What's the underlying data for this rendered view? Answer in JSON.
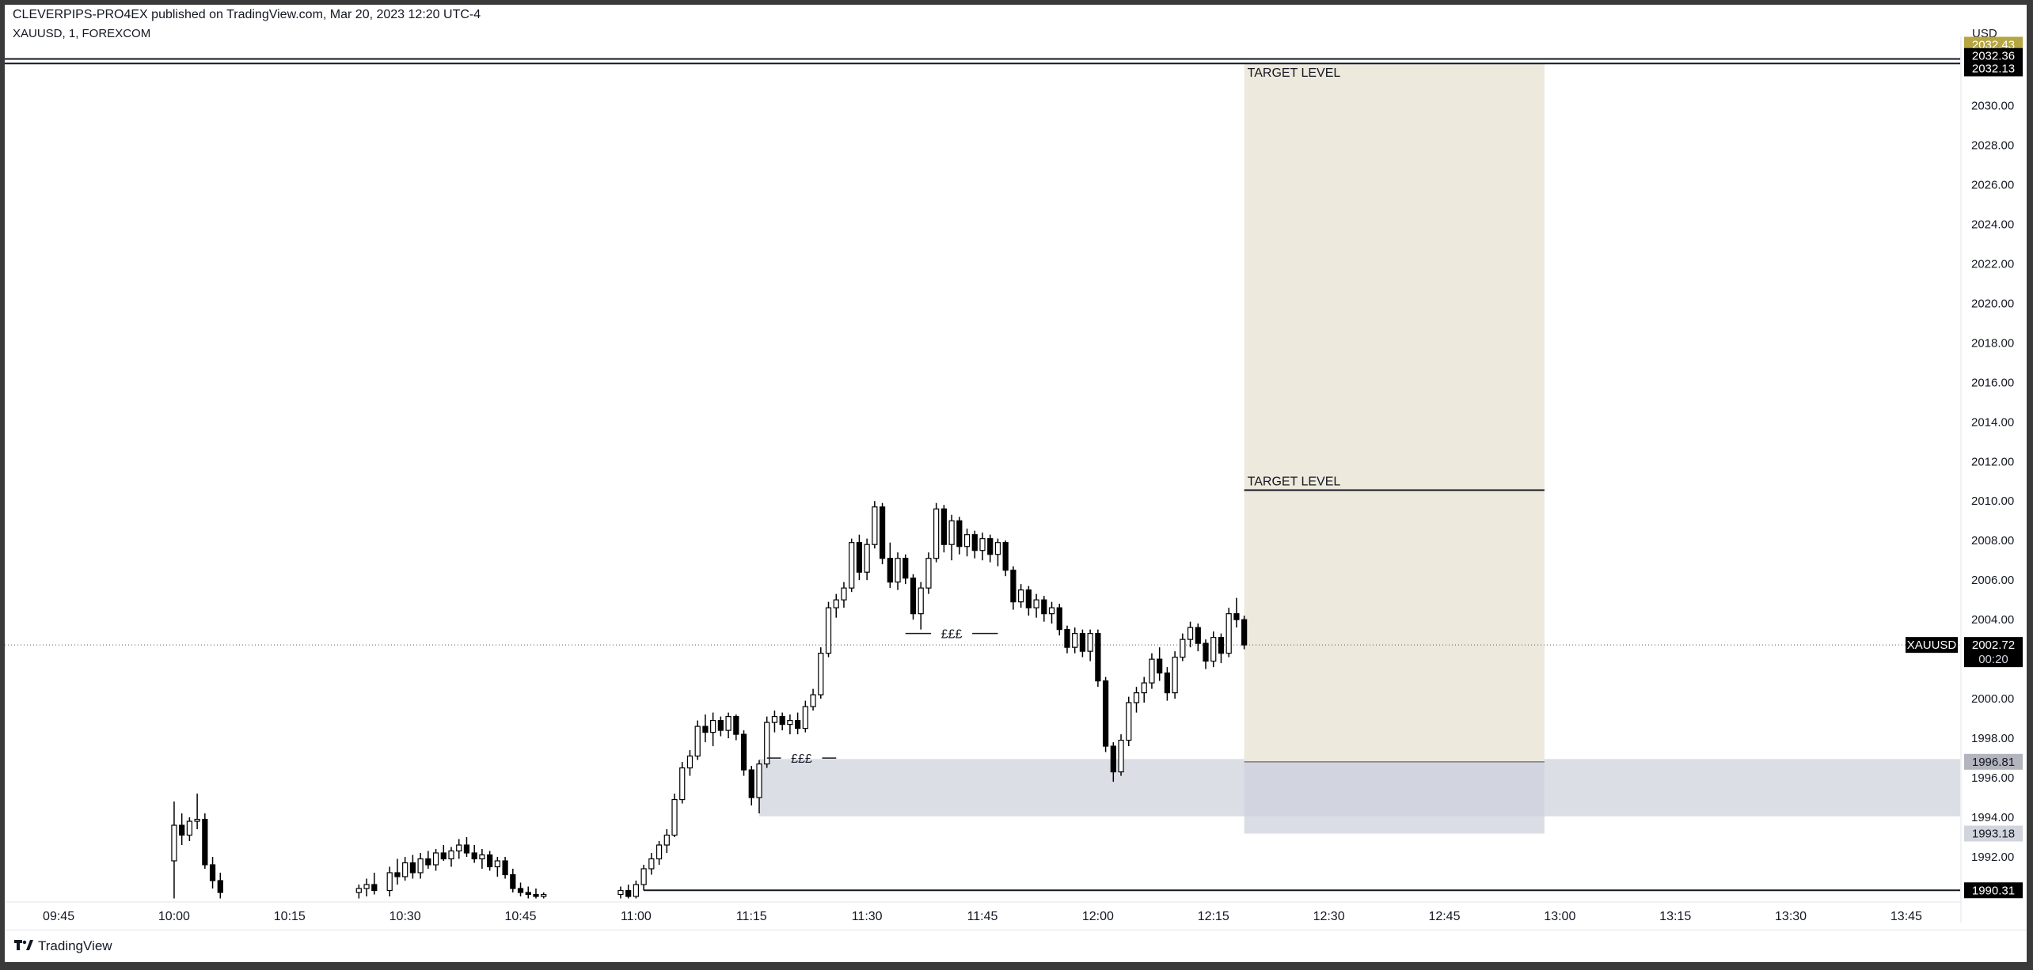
{
  "header": {
    "publisher_line": "CLEVERPIPS-PRO4EX published on TradingView.com, Mar 20, 2023 12:20 UTC-4",
    "symbol_line": "XAUUSD, 1, FOREXCOM",
    "currency": "USD"
  },
  "footer": {
    "brand": "TradingView"
  },
  "colors": {
    "candle": "#000000",
    "target_zone": "#ede9dc",
    "demand_zone": "#dcdee6",
    "line": "#131722",
    "tag_dark": "#000000",
    "tag_olive": "#b5a642",
    "tag_gray": "#b2b5be"
  },
  "chart_data": {
    "type": "candlestick",
    "symbol": "XAUUSD",
    "interval": "1",
    "exchange": "FOREXCOM",
    "ylim": [
      1989.8,
      2033.5
    ],
    "x_domain": [
      "09:38",
      "13:52"
    ],
    "price_ticks": [
      1992,
      1994,
      1996,
      1998,
      2000,
      2002,
      2004,
      2006,
      2008,
      2010,
      2012,
      2014,
      2016,
      2018,
      2020,
      2022,
      2024,
      2026,
      2028,
      2030
    ],
    "price_tick_labels": [
      "1992.00",
      "1994.00",
      "1996.00",
      "1998.00",
      "2000.00",
      "2002.00",
      "2004.00",
      "2006.00",
      "2008.00",
      "2010.00",
      "2012.00",
      "2014.00",
      "2016.00",
      "2018.00",
      "2020.00",
      "2022.00",
      "2024.00",
      "2026.00",
      "2028.00",
      "2030.00"
    ],
    "time_ticks": [
      "09:45",
      "10:00",
      "10:15",
      "10:30",
      "10:45",
      "11:00",
      "11:15",
      "11:30",
      "11:45",
      "12:00",
      "12:15",
      "12:30",
      "12:45",
      "13:00",
      "13:15",
      "13:30",
      "13:45"
    ],
    "candles": [
      {
        "t": "10:00",
        "o": 1991.8,
        "h": 1994.8,
        "l": 1989.9,
        "c": 1993.6
      },
      {
        "t": "10:01",
        "o": 1993.6,
        "h": 1994.2,
        "l": 1992.6,
        "c": 1993.1
      },
      {
        "t": "10:02",
        "o": 1993.1,
        "h": 1994.0,
        "l": 1992.8,
        "c": 1993.8
      },
      {
        "t": "10:03",
        "o": 1993.8,
        "h": 1995.2,
        "l": 1993.4,
        "c": 1993.9
      },
      {
        "t": "10:04",
        "o": 1993.9,
        "h": 1994.2,
        "l": 1991.4,
        "c": 1991.6
      },
      {
        "t": "10:05",
        "o": 1991.6,
        "h": 1992.0,
        "l": 1990.4,
        "c": 1990.8
      },
      {
        "t": "10:06",
        "o": 1990.8,
        "h": 1991.2,
        "l": 1989.9,
        "c": 1990.2
      },
      {
        "t": "10:24",
        "o": 1990.2,
        "h": 1990.6,
        "l": 1989.9,
        "c": 1990.4
      },
      {
        "t": "10:25",
        "o": 1990.4,
        "h": 1990.9,
        "l": 1990.0,
        "c": 1990.6
      },
      {
        "t": "10:26",
        "o": 1990.6,
        "h": 1991.2,
        "l": 1990.1,
        "c": 1990.3
      },
      {
        "t": "10:28",
        "o": 1990.3,
        "h": 1991.5,
        "l": 1990.0,
        "c": 1991.2
      },
      {
        "t": "10:29",
        "o": 1991.2,
        "h": 1991.9,
        "l": 1990.6,
        "c": 1991.0
      },
      {
        "t": "10:30",
        "o": 1991.0,
        "h": 1992.0,
        "l": 1990.8,
        "c": 1991.7
      },
      {
        "t": "10:31",
        "o": 1991.7,
        "h": 1992.1,
        "l": 1990.9,
        "c": 1991.2
      },
      {
        "t": "10:32",
        "o": 1991.2,
        "h": 1992.2,
        "l": 1990.9,
        "c": 1991.9
      },
      {
        "t": "10:33",
        "o": 1991.9,
        "h": 1992.3,
        "l": 1991.4,
        "c": 1991.6
      },
      {
        "t": "10:34",
        "o": 1991.6,
        "h": 1992.4,
        "l": 1991.3,
        "c": 1992.2
      },
      {
        "t": "10:35",
        "o": 1992.2,
        "h": 1992.6,
        "l": 1991.8,
        "c": 1991.9
      },
      {
        "t": "10:36",
        "o": 1991.9,
        "h": 1992.5,
        "l": 1991.5,
        "c": 1992.3
      },
      {
        "t": "10:37",
        "o": 1992.3,
        "h": 1992.9,
        "l": 1991.9,
        "c": 1992.6
      },
      {
        "t": "10:38",
        "o": 1992.6,
        "h": 1993.0,
        "l": 1992.0,
        "c": 1992.2
      },
      {
        "t": "10:39",
        "o": 1992.2,
        "h": 1992.6,
        "l": 1991.7,
        "c": 1991.9
      },
      {
        "t": "10:40",
        "o": 1991.9,
        "h": 1992.4,
        "l": 1991.4,
        "c": 1992.1
      },
      {
        "t": "10:41",
        "o": 1992.1,
        "h": 1992.3,
        "l": 1991.3,
        "c": 1991.5
      },
      {
        "t": "10:42",
        "o": 1991.5,
        "h": 1992.0,
        "l": 1991.0,
        "c": 1991.8
      },
      {
        "t": "10:43",
        "o": 1991.8,
        "h": 1992.0,
        "l": 1990.9,
        "c": 1991.1
      },
      {
        "t": "10:44",
        "o": 1991.1,
        "h": 1991.4,
        "l": 1990.2,
        "c": 1990.4
      },
      {
        "t": "10:45",
        "o": 1990.4,
        "h": 1990.7,
        "l": 1990.0,
        "c": 1990.2
      },
      {
        "t": "10:46",
        "o": 1990.2,
        "h": 1990.5,
        "l": 1989.9,
        "c": 1990.1
      },
      {
        "t": "10:47",
        "o": 1990.1,
        "h": 1990.4,
        "l": 1989.9,
        "c": 1990.0
      },
      {
        "t": "10:48",
        "o": 1990.0,
        "h": 1990.2,
        "l": 1989.9,
        "c": 1990.1
      },
      {
        "t": "10:58",
        "o": 1990.1,
        "h": 1990.5,
        "l": 1989.9,
        "c": 1990.3
      },
      {
        "t": "10:59",
        "o": 1990.3,
        "h": 1990.6,
        "l": 1989.9,
        "c": 1990.0
      },
      {
        "t": "11:00",
        "o": 1990.0,
        "h": 1990.8,
        "l": 1989.9,
        "c": 1990.6
      },
      {
        "t": "11:01",
        "o": 1990.6,
        "h": 1991.6,
        "l": 1990.3,
        "c": 1991.4
      },
      {
        "t": "11:02",
        "o": 1991.4,
        "h": 1992.2,
        "l": 1991.1,
        "c": 1991.9
      },
      {
        "t": "11:03",
        "o": 1991.9,
        "h": 1992.8,
        "l": 1991.6,
        "c": 1992.6
      },
      {
        "t": "11:04",
        "o": 1992.6,
        "h": 1993.4,
        "l": 1992.2,
        "c": 1993.1
      },
      {
        "t": "11:05",
        "o": 1993.1,
        "h": 1995.2,
        "l": 1993.0,
        "c": 1994.9
      },
      {
        "t": "11:06",
        "o": 1994.9,
        "h": 1996.8,
        "l": 1994.7,
        "c": 1996.5
      },
      {
        "t": "11:07",
        "o": 1996.5,
        "h": 1997.4,
        "l": 1996.1,
        "c": 1997.1
      },
      {
        "t": "11:08",
        "o": 1997.1,
        "h": 1998.9,
        "l": 1996.9,
        "c": 1998.6
      },
      {
        "t": "11:09",
        "o": 1998.6,
        "h": 1999.2,
        "l": 1997.8,
        "c": 1998.3
      },
      {
        "t": "11:10",
        "o": 1998.3,
        "h": 1999.3,
        "l": 1997.6,
        "c": 1998.9
      },
      {
        "t": "11:11",
        "o": 1998.9,
        "h": 1999.1,
        "l": 1998.1,
        "c": 1998.4
      },
      {
        "t": "11:12",
        "o": 1998.4,
        "h": 1999.3,
        "l": 1998.0,
        "c": 1999.1
      },
      {
        "t": "11:13",
        "o": 1999.1,
        "h": 1999.2,
        "l": 1997.9,
        "c": 1998.2
      },
      {
        "t": "11:14",
        "o": 1998.2,
        "h": 1998.4,
        "l": 1996.1,
        "c": 1996.4
      },
      {
        "t": "11:15",
        "o": 1996.4,
        "h": 1996.6,
        "l": 1994.6,
        "c": 1995.0
      },
      {
        "t": "11:16",
        "o": 1995.0,
        "h": 1996.9,
        "l": 1994.2,
        "c": 1996.7
      },
      {
        "t": "11:17",
        "o": 1996.7,
        "h": 1999.1,
        "l": 1996.5,
        "c": 1998.8
      },
      {
        "t": "11:18",
        "o": 1998.8,
        "h": 1999.4,
        "l": 1998.3,
        "c": 1999.1
      },
      {
        "t": "11:19",
        "o": 1999.1,
        "h": 1999.3,
        "l": 1998.4,
        "c": 1998.7
      },
      {
        "t": "11:20",
        "o": 1998.7,
        "h": 1999.2,
        "l": 1998.2,
        "c": 1998.9
      },
      {
        "t": "11:21",
        "o": 1998.9,
        "h": 1999.3,
        "l": 1998.2,
        "c": 1998.5
      },
      {
        "t": "11:22",
        "o": 1998.5,
        "h": 1999.9,
        "l": 1998.3,
        "c": 1999.6
      },
      {
        "t": "11:23",
        "o": 1999.6,
        "h": 2000.5,
        "l": 1999.4,
        "c": 2000.2
      },
      {
        "t": "11:24",
        "o": 2000.2,
        "h": 2002.6,
        "l": 2000.0,
        "c": 2002.3
      },
      {
        "t": "11:25",
        "o": 2002.3,
        "h": 2004.9,
        "l": 2002.1,
        "c": 2004.6
      },
      {
        "t": "11:26",
        "o": 2004.6,
        "h": 2005.3,
        "l": 2004.1,
        "c": 2005.0
      },
      {
        "t": "11:27",
        "o": 2005.0,
        "h": 2005.9,
        "l": 2004.6,
        "c": 2005.6
      },
      {
        "t": "11:28",
        "o": 2005.6,
        "h": 2008.1,
        "l": 2005.4,
        "c": 2007.9
      },
      {
        "t": "11:29",
        "o": 2007.9,
        "h": 2008.3,
        "l": 2006.0,
        "c": 2006.4
      },
      {
        "t": "11:30",
        "o": 2006.4,
        "h": 2008.1,
        "l": 2006.0,
        "c": 2007.8
      },
      {
        "t": "11:31",
        "o": 2007.8,
        "h": 2010.0,
        "l": 2007.6,
        "c": 2009.7
      },
      {
        "t": "11:32",
        "o": 2009.7,
        "h": 2009.9,
        "l": 2006.8,
        "c": 2007.1
      },
      {
        "t": "11:33",
        "o": 2007.1,
        "h": 2007.9,
        "l": 2005.6,
        "c": 2005.9
      },
      {
        "t": "11:34",
        "o": 2005.9,
        "h": 2007.4,
        "l": 2005.5,
        "c": 2007.1
      },
      {
        "t": "11:35",
        "o": 2007.1,
        "h": 2007.3,
        "l": 2005.8,
        "c": 2006.1
      },
      {
        "t": "11:36",
        "o": 2006.1,
        "h": 2006.3,
        "l": 2004.0,
        "c": 2004.3
      },
      {
        "t": "11:37",
        "o": 2004.3,
        "h": 2005.9,
        "l": 2003.5,
        "c": 2005.6
      },
      {
        "t": "11:38",
        "o": 2005.6,
        "h": 2007.4,
        "l": 2005.3,
        "c": 2007.1
      },
      {
        "t": "11:39",
        "o": 2007.1,
        "h": 2009.9,
        "l": 2006.9,
        "c": 2009.6
      },
      {
        "t": "11:40",
        "o": 2009.6,
        "h": 2009.8,
        "l": 2007.4,
        "c": 2007.8
      },
      {
        "t": "11:41",
        "o": 2007.8,
        "h": 2009.3,
        "l": 2007.0,
        "c": 2009.0
      },
      {
        "t": "11:42",
        "o": 2009.0,
        "h": 2009.2,
        "l": 2007.3,
        "c": 2007.7
      },
      {
        "t": "11:43",
        "o": 2007.7,
        "h": 2008.6,
        "l": 2007.2,
        "c": 2008.3
      },
      {
        "t": "11:44",
        "o": 2008.3,
        "h": 2008.5,
        "l": 2007.1,
        "c": 2007.5
      },
      {
        "t": "11:45",
        "o": 2007.5,
        "h": 2008.4,
        "l": 2007.0,
        "c": 2008.1
      },
      {
        "t": "11:46",
        "o": 2008.1,
        "h": 2008.3,
        "l": 2006.9,
        "c": 2007.3
      },
      {
        "t": "11:47",
        "o": 2007.3,
        "h": 2008.1,
        "l": 2006.7,
        "c": 2007.9
      },
      {
        "t": "11:48",
        "o": 2007.9,
        "h": 2008.0,
        "l": 2006.2,
        "c": 2006.5
      },
      {
        "t": "11:49",
        "o": 2006.5,
        "h": 2006.7,
        "l": 2004.5,
        "c": 2004.9
      },
      {
        "t": "11:50",
        "o": 2004.9,
        "h": 2005.8,
        "l": 2004.6,
        "c": 2005.5
      },
      {
        "t": "11:51",
        "o": 2005.5,
        "h": 2005.7,
        "l": 2004.2,
        "c": 2004.6
      },
      {
        "t": "11:52",
        "o": 2004.6,
        "h": 2005.3,
        "l": 2004.1,
        "c": 2005.0
      },
      {
        "t": "11:53",
        "o": 2005.0,
        "h": 2005.2,
        "l": 2003.9,
        "c": 2004.3
      },
      {
        "t": "11:54",
        "o": 2004.3,
        "h": 2004.9,
        "l": 2003.8,
        "c": 2004.6
      },
      {
        "t": "11:55",
        "o": 2004.6,
        "h": 2004.8,
        "l": 2003.2,
        "c": 2003.5
      },
      {
        "t": "11:56",
        "o": 2003.5,
        "h": 2003.7,
        "l": 2002.3,
        "c": 2002.6
      },
      {
        "t": "11:57",
        "o": 2002.6,
        "h": 2003.6,
        "l": 2002.3,
        "c": 2003.3
      },
      {
        "t": "11:58",
        "o": 2003.3,
        "h": 2003.5,
        "l": 2002.1,
        "c": 2002.4
      },
      {
        "t": "11:59",
        "o": 2002.4,
        "h": 2003.5,
        "l": 2001.9,
        "c": 2003.3
      },
      {
        "t": "12:00",
        "o": 2003.3,
        "h": 2003.5,
        "l": 2000.6,
        "c": 2000.9
      },
      {
        "t": "12:01",
        "o": 2000.9,
        "h": 2001.1,
        "l": 1997.3,
        "c": 1997.6
      },
      {
        "t": "12:02",
        "o": 1997.6,
        "h": 1997.8,
        "l": 1995.8,
        "c": 1996.3
      },
      {
        "t": "12:03",
        "o": 1996.3,
        "h": 1998.2,
        "l": 1996.1,
        "c": 1997.9
      },
      {
        "t": "12:04",
        "o": 1997.9,
        "h": 2000.1,
        "l": 1997.6,
        "c": 1999.8
      },
      {
        "t": "12:05",
        "o": 1999.8,
        "h": 2000.6,
        "l": 1999.3,
        "c": 2000.3
      },
      {
        "t": "12:06",
        "o": 2000.3,
        "h": 2001.1,
        "l": 1999.8,
        "c": 2000.8
      },
      {
        "t": "12:07",
        "o": 2000.8,
        "h": 2002.3,
        "l": 2000.5,
        "c": 2002.0
      },
      {
        "t": "12:08",
        "o": 2002.0,
        "h": 2002.6,
        "l": 2000.9,
        "c": 2001.3
      },
      {
        "t": "12:09",
        "o": 2001.3,
        "h": 2001.6,
        "l": 1999.9,
        "c": 2000.3
      },
      {
        "t": "12:10",
        "o": 2000.3,
        "h": 2002.4,
        "l": 2000.0,
        "c": 2002.1
      },
      {
        "t": "12:11",
        "o": 2002.1,
        "h": 2003.3,
        "l": 2001.9,
        "c": 2003.0
      },
      {
        "t": "12:12",
        "o": 2003.0,
        "h": 2003.9,
        "l": 2002.6,
        "c": 2003.6
      },
      {
        "t": "12:13",
        "o": 2003.6,
        "h": 2003.8,
        "l": 2002.4,
        "c": 2002.8
      },
      {
        "t": "12:14",
        "o": 2002.8,
        "h": 2003.0,
        "l": 2001.5,
        "c": 2001.9
      },
      {
        "t": "12:15",
        "o": 2001.9,
        "h": 2003.4,
        "l": 2001.6,
        "c": 2003.1
      },
      {
        "t": "12:16",
        "o": 2003.1,
        "h": 2003.3,
        "l": 2001.8,
        "c": 2002.3
      },
      {
        "t": "12:17",
        "o": 2002.3,
        "h": 2004.6,
        "l": 2002.1,
        "c": 2004.3
      },
      {
        "t": "12:18",
        "o": 2004.3,
        "h": 2005.1,
        "l": 2003.6,
        "c": 2004.0
      },
      {
        "t": "12:19",
        "o": 2004.0,
        "h": 2004.2,
        "l": 2002.5,
        "c": 2002.72
      }
    ],
    "last_price": {
      "symbol_tag": "XAUUSD",
      "price": 2002.72,
      "price_label": "2002.72",
      "countdown": "00:20"
    },
    "horizontal_lines": [
      {
        "name": "top-line-1",
        "price": 2032.36,
        "label": "2032.36",
        "start": "09:38"
      },
      {
        "name": "top-line-2",
        "price": 2032.13,
        "label": "2032.13",
        "start": "09:38"
      },
      {
        "name": "bottom-line",
        "price": 1990.31,
        "label": "1990.31",
        "start": "11:01"
      }
    ],
    "axis_tags": [
      {
        "price": 2032.43,
        "label": "2032.43",
        "style": "olive"
      },
      {
        "price": 1996.81,
        "label": "1996.81",
        "style": "gray"
      },
      {
        "price": 1993.18,
        "label": "1993.18",
        "style": "light"
      }
    ],
    "target_zone": {
      "x_start": "12:19",
      "x_end": "12:58",
      "top": 2032.13,
      "bottom": 1993.18,
      "divider_price": 1996.81,
      "labels": [
        {
          "text": "TARGET LEVEL",
          "price": 2032.13
        },
        {
          "text": "TARGET LEVEL",
          "price": 2010.55
        }
      ],
      "target_line_price": 2010.55
    },
    "demand_zone": {
      "x_start": "11:16",
      "x_end": "13:52",
      "top": 1996.95,
      "bottom": 1994.05
    },
    "annotations": [
      {
        "text": "£££",
        "price": 2003.3,
        "x_start": "11:35",
        "x_end": "11:47"
      },
      {
        "text": "£££",
        "price": 1997.0,
        "x_start": "11:17",
        "x_end": "11:26"
      }
    ]
  }
}
